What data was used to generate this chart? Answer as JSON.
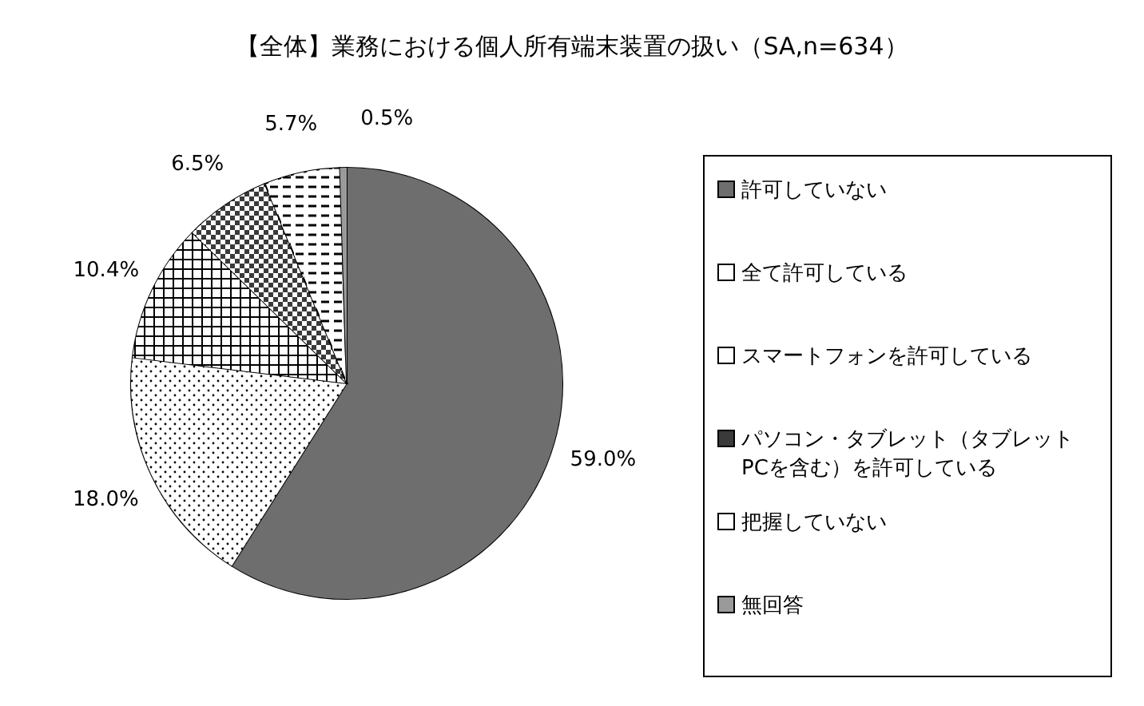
{
  "chart_data": {
    "type": "pie",
    "title": "【全体】業務における個人所有端末装置の扱い（SA,n=634）",
    "categories": [
      "許可していない",
      "全て許可している",
      "スマートフォンを許可している",
      "パソコン・タブレット（タブレットPCを含む）を許可している",
      "把握していない",
      "無回答"
    ],
    "values": [
      59.0,
      18.0,
      10.4,
      6.5,
      5.7,
      0.5
    ],
    "value_labels": [
      "59.0%",
      "18.0%",
      "10.4%",
      "6.5%",
      "5.7%",
      "0.5%"
    ],
    "colors": [
      "#6e6e6e",
      "#ffffff",
      "#ffffff",
      "#3a3a3a",
      "#ffffff",
      "#9a9a9a"
    ],
    "legend": "right"
  }
}
